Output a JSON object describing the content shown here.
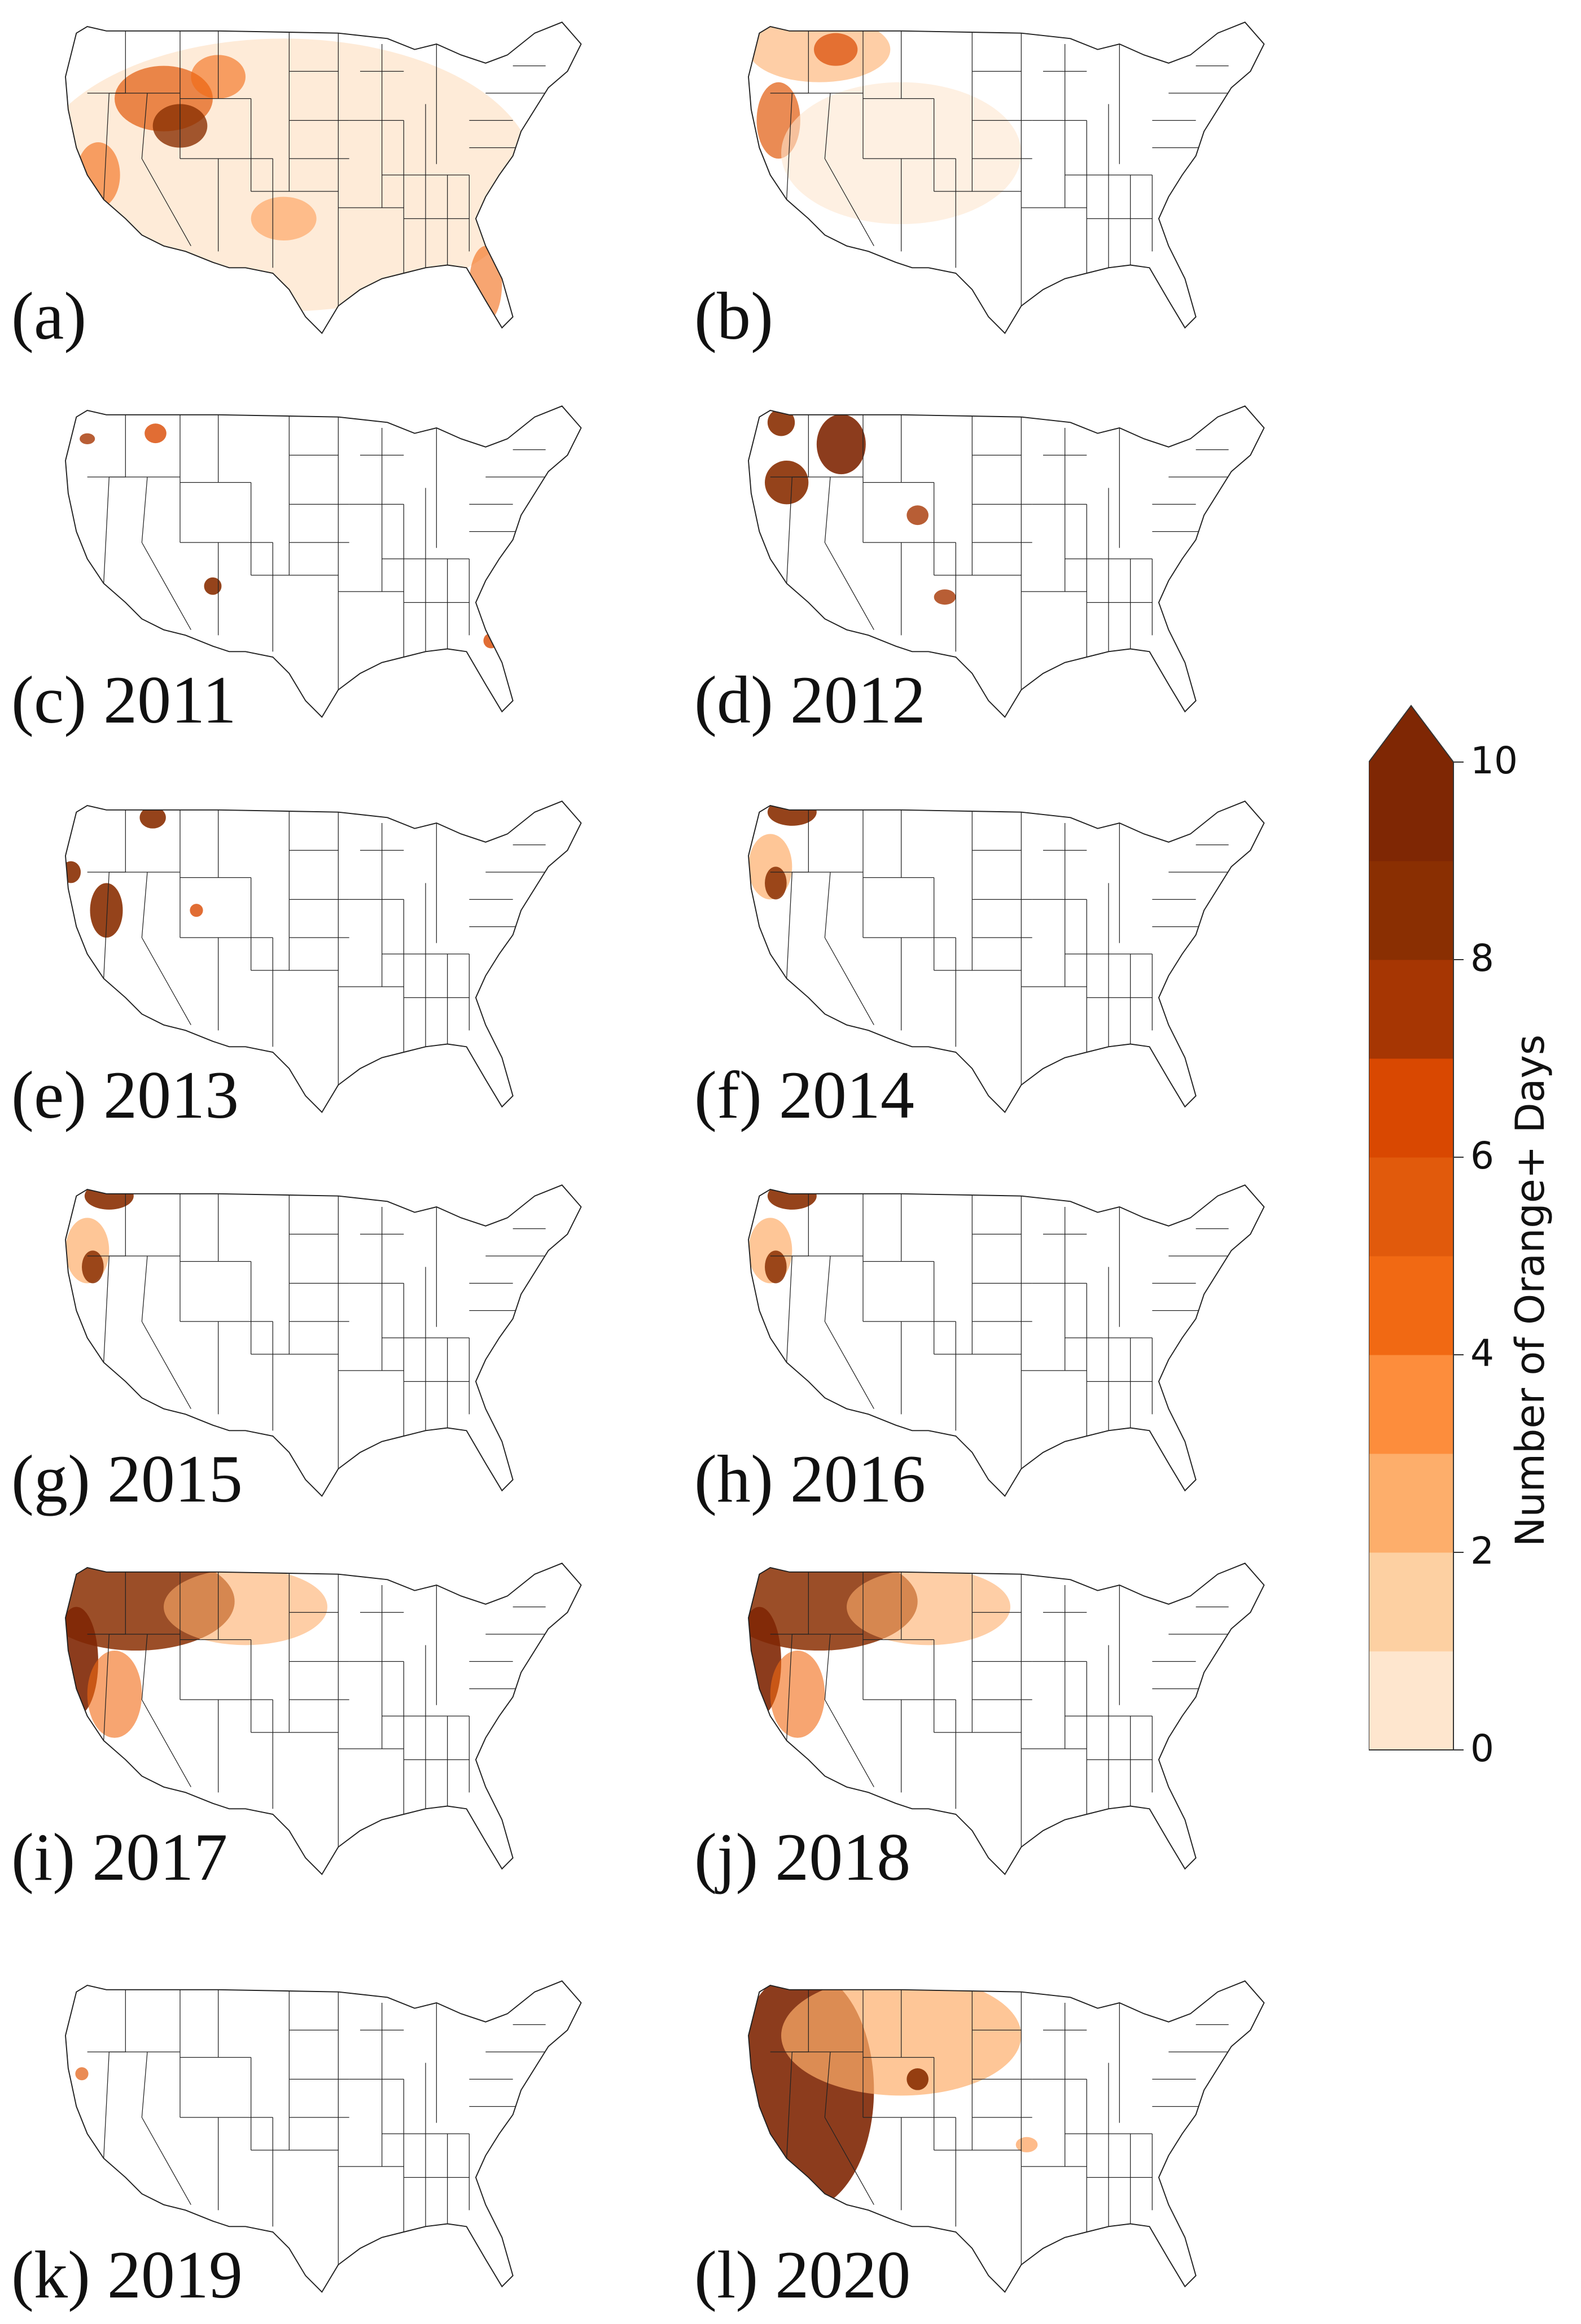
{
  "colors": {
    "scale": [
      "#fff5eb",
      "#fee6ce",
      "#fdd0a2",
      "#fdae6b",
      "#fd8d3c",
      "#f16913",
      "#e15a0c",
      "#d94801",
      "#a63603",
      "#8a2f02",
      "#7f2704"
    ],
    "state_border": "#222222"
  },
  "colorbar": {
    "label": "Number of Orange+ Days",
    "ticks": [
      "0",
      "2",
      "4",
      "6",
      "8",
      "10"
    ],
    "min": 0,
    "max": 10,
    "extend": "max"
  },
  "panels": [
    {
      "label": "(a)",
      "fill": "dense"
    },
    {
      "label": "(b)",
      "fill": "northwest"
    },
    {
      "label": "(c) 2011",
      "fill": "sparse"
    },
    {
      "label": "(d) 2012",
      "fill": "idaho"
    },
    {
      "label": "(e) 2013",
      "fill": "california"
    },
    {
      "label": "(f) 2014",
      "fill": "northwest-light"
    },
    {
      "label": "(g) 2015",
      "fill": "northwest-light"
    },
    {
      "label": "(h) 2016",
      "fill": "northwest-light"
    },
    {
      "label": "(i) 2017",
      "fill": "west-heavy"
    },
    {
      "label": "(j) 2018",
      "fill": "west-heavy"
    },
    {
      "label": "(k) 2019",
      "fill": "minimal"
    },
    {
      "label": "(l) 2020",
      "fill": "west-extreme"
    }
  ]
}
